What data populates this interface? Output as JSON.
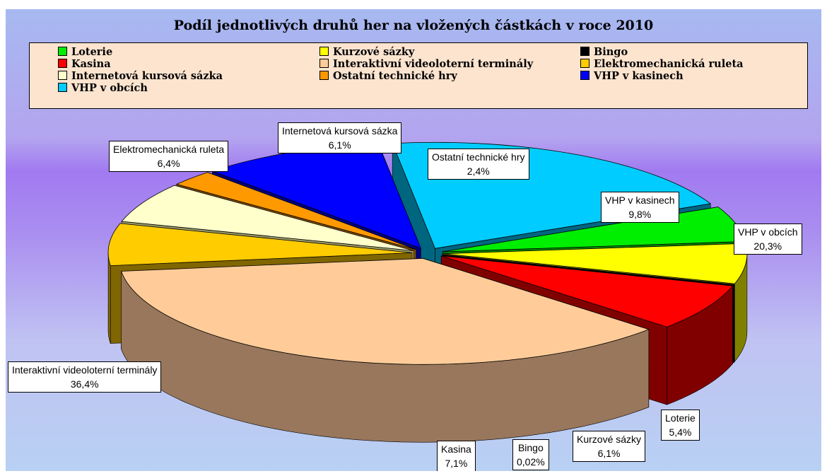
{
  "chart_data": {
    "type": "pie",
    "title": "Podíl jednotlivých druhů her na vložených částkách v roce 2010",
    "three_d": true,
    "legend_position": "top",
    "series": [
      {
        "name": "Loterie",
        "value": 5.4,
        "value_label": "5,4%",
        "color": "#00ee00",
        "side_color": "#008800",
        "exploded": true
      },
      {
        "name": "Kurzové sázky",
        "value": 6.1,
        "value_label": "6,1%",
        "color": "#ffff00",
        "side_color": "#808000",
        "exploded": true
      },
      {
        "name": "Bingo",
        "value": 0.02,
        "value_label": "0,02%",
        "color": "#000000",
        "side_color": "#000000",
        "exploded": true
      },
      {
        "name": "Kasina",
        "value": 7.1,
        "value_label": "7,1%",
        "color": "#ff0000",
        "side_color": "#800000",
        "exploded": true
      },
      {
        "name": "Interaktivní videoloterní terminály",
        "value": 36.4,
        "value_label": "36,4%",
        "color": "#ffcc99",
        "side_color": "#99775c",
        "exploded": true
      },
      {
        "name": "Elektromechanická ruleta",
        "value": 6.4,
        "value_label": "6,4%",
        "color": "#ffcc00",
        "side_color": "#806600",
        "exploded": true
      },
      {
        "name": "Internetová kursová sázka",
        "value": 6.1,
        "value_label": "6,1%",
        "color": "#ffffcc",
        "side_color": "#999966",
        "exploded": true
      },
      {
        "name": "Ostatní technické hry",
        "value": 2.4,
        "value_label": "2,4%",
        "color": "#ff9900",
        "side_color": "#804d00",
        "exploded": true
      },
      {
        "name": "VHP v kasinech",
        "value": 9.8,
        "value_label": "9,8%",
        "color": "#0000ff",
        "side_color": "#000080",
        "exploded": true
      },
      {
        "name": "VHP v obcích",
        "value": 20.3,
        "value_label": "20,3%",
        "color": "#00ccff",
        "side_color": "#006680",
        "exploded": true
      }
    ]
  },
  "legend": {
    "items": [
      {
        "label": "Loterie",
        "color": "#00ee00"
      },
      {
        "label": "Kurzové sázky",
        "color": "#ffff00"
      },
      {
        "label": "Bingo",
        "color": "#000000"
      },
      {
        "label": "Kasina",
        "color": "#ff0000"
      },
      {
        "label": "Interaktivní videoloterní terminály",
        "color": "#ffcc99"
      },
      {
        "label": "Elektromechanická ruleta",
        "color": "#ffcc00"
      },
      {
        "label": "Internetová kursová sázka",
        "color": "#ffffcc"
      },
      {
        "label": "Ostatní technické hry",
        "color": "#ff9900"
      },
      {
        "label": "VHP v kasinech",
        "color": "#0000ff"
      },
      {
        "label": "VHP v obcích",
        "color": "#00ccff"
      }
    ]
  }
}
